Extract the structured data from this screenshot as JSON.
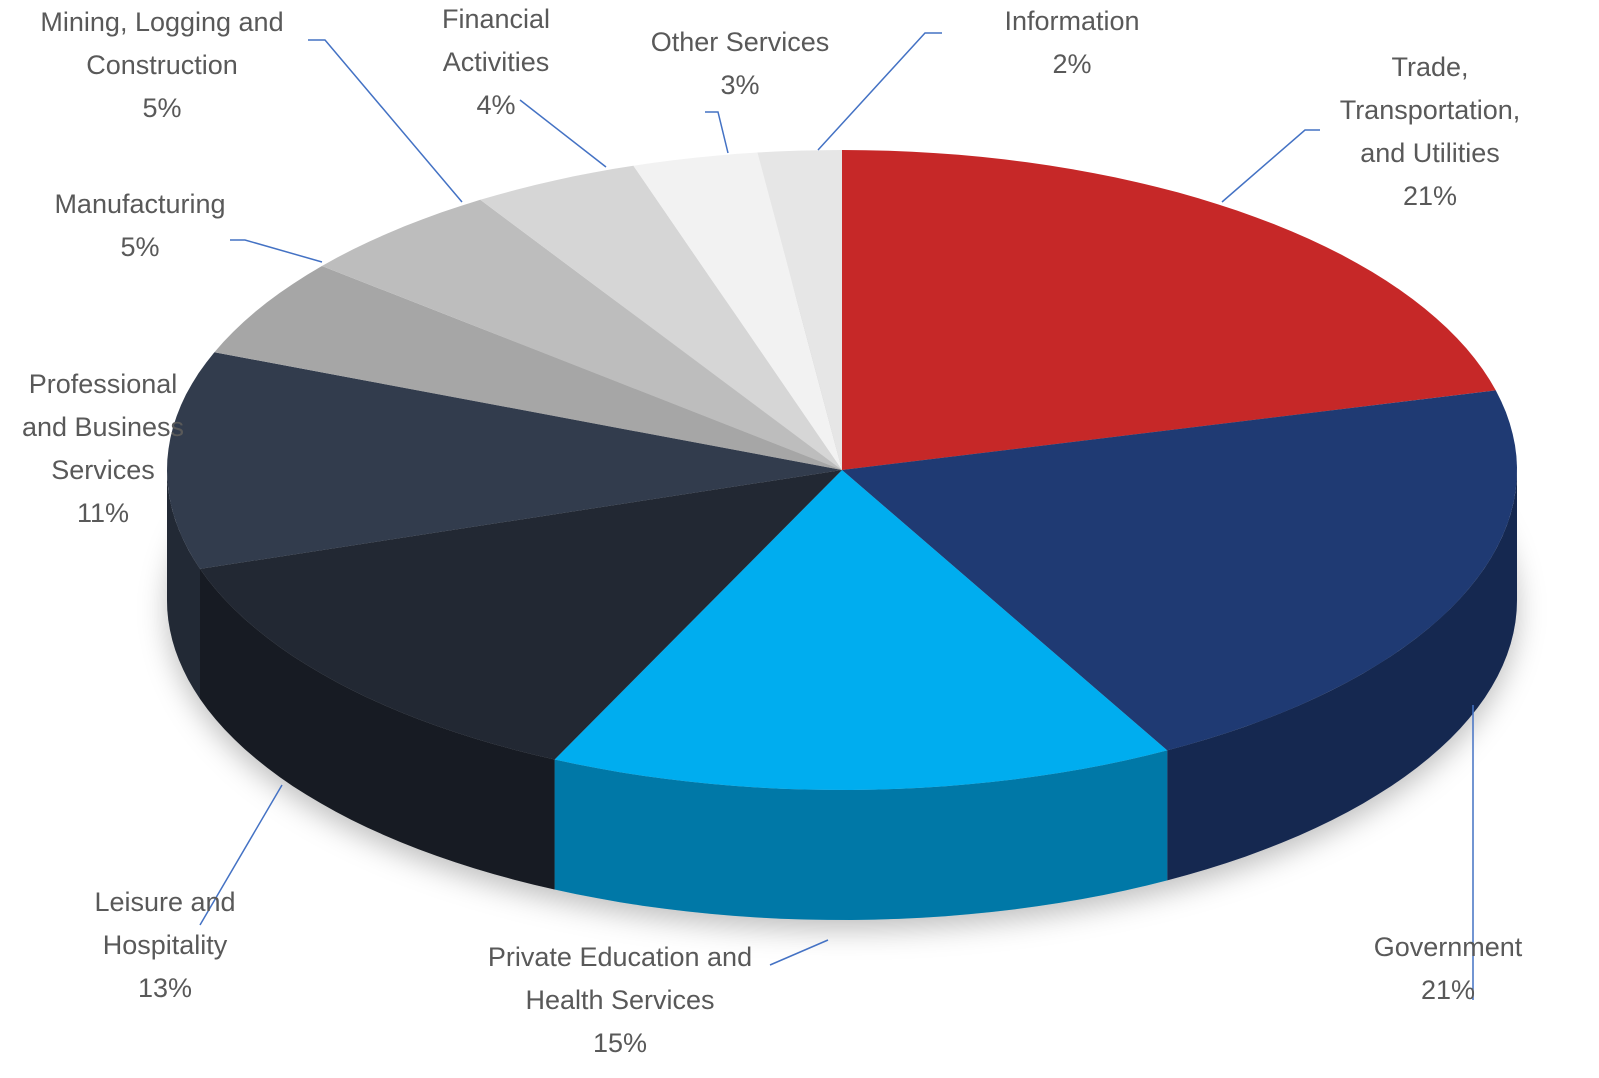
{
  "chart_data": {
    "type": "pie",
    "categories": [
      "Trade, Transportation, and Utilities",
      "Government",
      "Private Education and Health Services",
      "Leisure and Hospitality",
      "Professional and Business Services",
      "Manufacturing",
      "Mining, Logging and Construction",
      "Financial Activities",
      "Other Services",
      "Information"
    ],
    "values": [
      21,
      21,
      15,
      13,
      11,
      5,
      5,
      4,
      3,
      2
    ],
    "value_labels": [
      "21%",
      "21%",
      "15%",
      "13%",
      "11%",
      "5%",
      "5%",
      "4%",
      "3%",
      "2%"
    ],
    "colors": [
      "#c62828",
      "#1f3a73",
      "#00adef",
      "#222833",
      "#323c4d",
      "#a6a6a6",
      "#bdbdbd",
      "#d6d6d6",
      "#f2f2f2",
      "#e6e6e6"
    ]
  }
}
